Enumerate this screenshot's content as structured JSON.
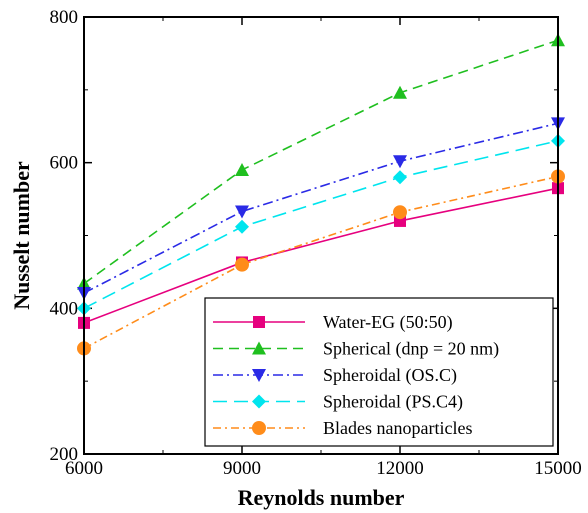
{
  "chart_data": {
    "type": "line",
    "xlabel": "Reynolds number",
    "ylabel": "Nusselt number",
    "xlim": [
      6000,
      15000
    ],
    "ylim": [
      200,
      800
    ],
    "x_ticks": [
      "6000",
      "9000",
      "12000",
      "15000"
    ],
    "y_ticks": [
      "200",
      "400",
      "600",
      "800"
    ],
    "x": [
      6000,
      9000,
      12000,
      15000
    ],
    "legend_position": "bottom-right",
    "grid": false,
    "series": [
      {
        "name": "Water-EG (50:50)",
        "values": [
          380,
          463,
          520,
          565
        ],
        "color": "#e6007e",
        "dash": "solid",
        "marker": "square"
      },
      {
        "name": "Spherical (dnp = 20 nm)",
        "values": [
          434,
          590,
          696,
          768
        ],
        "color": "#1fbf1f",
        "dash": "dashed",
        "marker": "triangle-up"
      },
      {
        "name": "Spheroidal (OS.C)",
        "values": [
          421,
          533,
          602,
          654
        ],
        "color": "#2a2ae6",
        "dash": "dashdot",
        "marker": "triangle-down"
      },
      {
        "name": "Spheroidal (PS.C4)",
        "values": [
          400,
          512,
          580,
          630
        ],
        "color": "#00e5ee",
        "dash": "longdash",
        "marker": "diamond"
      },
      {
        "name": "Blades nanoparticles",
        "values": [
          345,
          460,
          532,
          581
        ],
        "color": "#ff8c1a",
        "dash": "dashdot2",
        "marker": "circle"
      }
    ]
  }
}
